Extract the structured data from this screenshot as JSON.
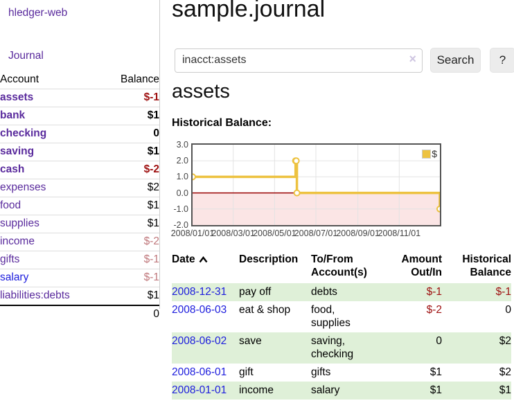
{
  "app": {
    "brand": "hledger-web"
  },
  "colors": {
    "link_purple": "#5a2b9d",
    "link_blue": "#1b1bdd",
    "negative_bold": "#9e1010",
    "negative_light": "#c0787c",
    "row_stripe_green": "#dff0d8"
  },
  "sidebar": {
    "journal_link": "Journal",
    "accounts_table": {
      "account_header": "Account",
      "balance_header": "Balance",
      "rows": [
        {
          "account": "assets",
          "balance": "$-1"
        },
        {
          "account": "bank",
          "balance": "$1"
        },
        {
          "account": "checking",
          "balance": "0"
        },
        {
          "account": "saving",
          "balance": "$1"
        },
        {
          "account": "cash",
          "balance": "$-2"
        },
        {
          "account": "expenses",
          "balance": "$2"
        },
        {
          "account": "food",
          "balance": "$1"
        },
        {
          "account": "supplies",
          "balance": "$1"
        },
        {
          "account": "income",
          "balance": "$-2"
        },
        {
          "account": "gifts",
          "balance": "$-1"
        },
        {
          "account": "salary",
          "balance": "$-1"
        },
        {
          "account": "liabilities:debts",
          "balance": "$1"
        }
      ],
      "total": "0"
    }
  },
  "header": {
    "title": "sample.journal"
  },
  "search": {
    "value": "inacct:assets",
    "clear_icon": "×",
    "button_label": "Search",
    "help_label": "?"
  },
  "account_page": {
    "heading": "assets",
    "chart_label": "Historical Balance:"
  },
  "chart_data": {
    "type": "line",
    "subtype": "step",
    "title": "Historical Balance:",
    "legend": [
      {
        "label": "$",
        "color": "#edc240"
      }
    ],
    "legend_position": "top-right",
    "x_range": [
      "2008-01-01",
      "2008-12-31"
    ],
    "ylim": [
      -2.0,
      3.0
    ],
    "yticks": [
      {
        "v": 3.0,
        "label": "3.0"
      },
      {
        "v": 2.0,
        "label": "2.0"
      },
      {
        "v": 1.0,
        "label": "1.0"
      },
      {
        "v": 0.0,
        "label": "0.0"
      },
      {
        "v": -1.0,
        "label": "-1.0"
      },
      {
        "v": -2.0,
        "label": "-2.0"
      }
    ],
    "xticks": [
      {
        "date": "2008-01-01",
        "label": "2008/01/01"
      },
      {
        "date": "2008-03-01",
        "label": "2008/03/01"
      },
      {
        "date": "2008-05-01",
        "label": "2008/05/01"
      },
      {
        "date": "2008-07-01",
        "label": "2008/07/01"
      },
      {
        "date": "2008-09-01",
        "label": "2008/09/01"
      },
      {
        "date": "2008-11-01",
        "label": "2008/11/01"
      }
    ],
    "points": [
      {
        "date": "2008-01-01",
        "value": 1
      },
      {
        "date": "2008-06-01",
        "value": 2
      },
      {
        "date": "2008-06-02",
        "value": 2
      },
      {
        "date": "2008-06-03",
        "value": 0
      },
      {
        "date": "2008-12-31",
        "value": -1
      }
    ],
    "grid": true,
    "grid_color": "#e3e3e3",
    "line_color": "#edc240",
    "marker_fill": "#ffffff",
    "negative_fill": "#fbe5e5",
    "zero_line_color": "#990000",
    "border_color": "#545454"
  },
  "register_table": {
    "headers": {
      "date": "Date",
      "description": "Description",
      "accounts": "To/From Account(s)",
      "amount": "Amount Out/In",
      "balance": "Historical Balance"
    },
    "sort": "date-ascending",
    "rows": [
      {
        "date": "2008-12-31",
        "description": "pay off",
        "accounts": "debts",
        "amount": "$-1",
        "balance": "$-1"
      },
      {
        "date": "2008-06-03",
        "description": "eat & shop",
        "accounts": "food, supplies",
        "amount": "$-2",
        "balance": "0"
      },
      {
        "date": "2008-06-02",
        "description": "save",
        "accounts": "saving, checking",
        "amount": "0",
        "balance": "$2"
      },
      {
        "date": "2008-06-01",
        "description": "gift",
        "accounts": "gifts",
        "amount": "$1",
        "balance": "$2"
      },
      {
        "date": "2008-01-01",
        "description": "income",
        "accounts": "salary",
        "amount": "$1",
        "balance": "$1"
      }
    ]
  }
}
